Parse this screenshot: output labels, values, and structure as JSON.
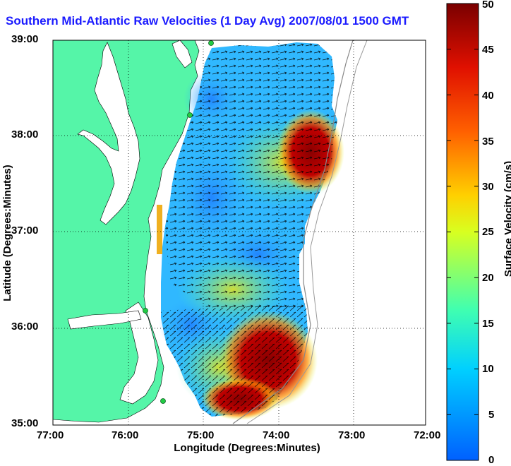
{
  "title": "Southern Mid-Atlantic Raw Velocities (1 Day Avg) 2007/08/01 1500 GMT",
  "x_axis": {
    "label": "Longitude (Degrees:Minutes)",
    "ticks": [
      "77:00",
      "76:00",
      "75:00",
      "74:00",
      "73:00",
      "72:00"
    ],
    "range": [
      -77,
      -72
    ]
  },
  "y_axis": {
    "label": "Latitude (Degrees:Minutes)",
    "ticks": [
      "39:00",
      "38:00",
      "37:00",
      "36:00",
      "35:00"
    ],
    "range": [
      35,
      39
    ]
  },
  "colorbar": {
    "label": "Surface Velocity (cm/s)",
    "ticks": [
      "50",
      "45",
      "40",
      "35",
      "30",
      "25",
      "20",
      "15",
      "10",
      "5",
      "0"
    ],
    "range": [
      0,
      50
    ]
  },
  "colors": {
    "title": "#1a1aff",
    "land": "#55f5a8",
    "water": "#ffffff",
    "grid": "#000000",
    "station": "#22cc44"
  }
}
